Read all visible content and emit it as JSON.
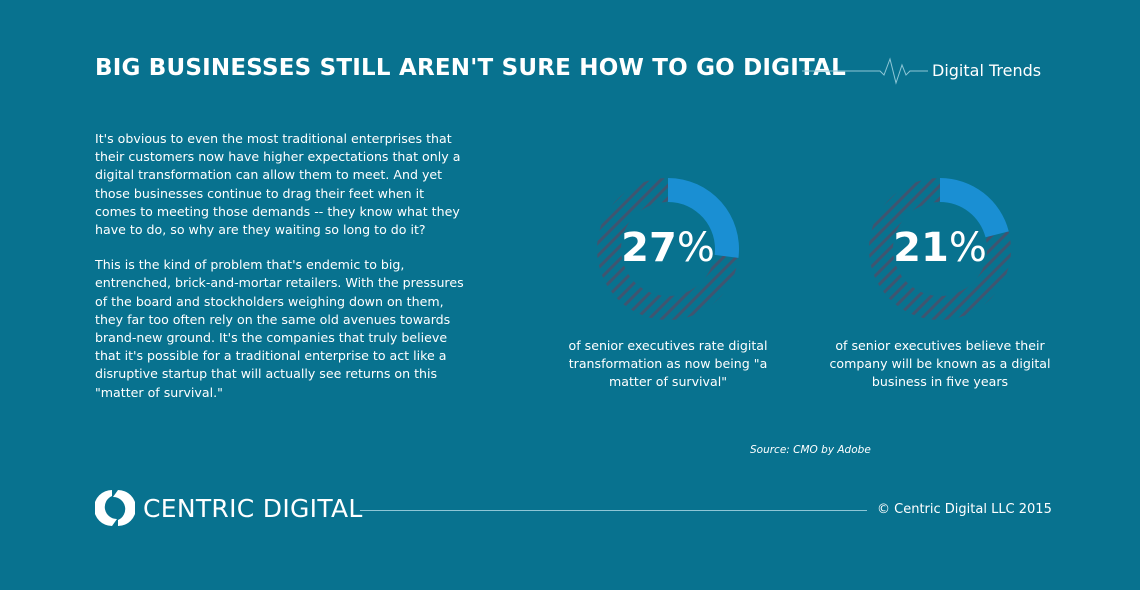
{
  "header": {
    "title": "BIG BUSINESSES STILL AREN'T SURE HOW TO GO DIGITAL",
    "tag": "Digital Trends"
  },
  "body": {
    "paragraphs": [
      "It's obvious to even the most traditional enterprises that their customers now have higher expectations that only a digital transformation can allow them to meet. And yet those businesses continue to drag their feet when it comes to meeting those demands -- they know what they have to do, so why are they waiting so long to do it?",
      "This is the kind of problem that's endemic to big, entrenched, brick-and-mortar retailers. With the pressures of the board and stockholders weighing down on them, they far too often rely on the same old avenues towards brand-new ground. It's the companies that truly believe that it's possible for a traditional enterprise to act like a disruptive startup that will actually see returns on this \"matter of survival.\""
    ]
  },
  "chart_data": [
    {
      "type": "pie",
      "variant": "donut",
      "value": 27,
      "value_label": "27",
      "unit": "%",
      "caption": "of senior executives rate digital transformation as now being \"a matter of survival\"",
      "colors": {
        "filled": "#1a8fd3",
        "remainder": "#3f5570 hatched"
      }
    },
    {
      "type": "pie",
      "variant": "donut",
      "value": 21,
      "value_label": "21",
      "unit": "%",
      "caption": "of senior executives believe their company will be known as a digital business in five years",
      "colors": {
        "filled": "#1a8fd3",
        "remainder": "#3f5570 hatched"
      }
    }
  ],
  "source": "Source: CMO by Adobe",
  "footer": {
    "logo": "CENTRIC DIGITAL",
    "copyright": "© Centric Digital LLC 2015"
  },
  "colors": {
    "background": "#08728f",
    "accent": "#1a8fd3",
    "hatch": "#3f5570"
  }
}
